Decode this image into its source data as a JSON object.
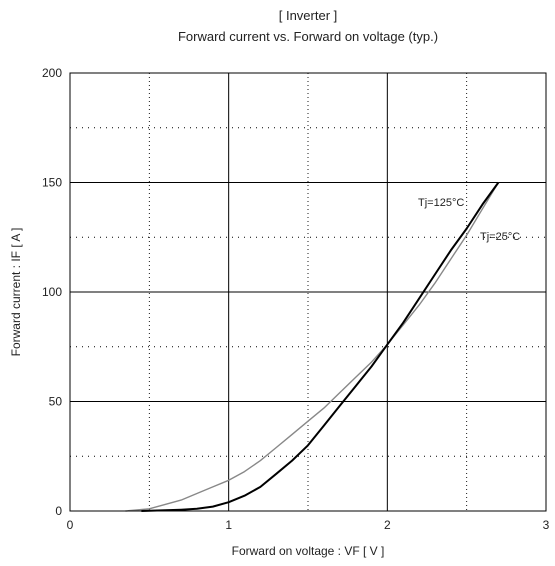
{
  "chart_data": {
    "type": "line",
    "title": "[ Inverter ]",
    "subtitle": "Forward current  vs.  Forward on voltage  (typ.)",
    "xlabel": "Forward on voltage  :  VF  [ V ]",
    "ylabel": "Forward current  :  IF  [ A ]",
    "xlim": [
      0,
      3
    ],
    "ylim": [
      0,
      200
    ],
    "xticks": [
      "0",
      "1",
      "2",
      "3"
    ],
    "yticks": [
      "0",
      "50",
      "100",
      "150",
      "200"
    ],
    "grid": true,
    "series": [
      {
        "name": "Tj=125°C",
        "color": "#888888",
        "x": [
          0.35,
          0.5,
          0.6,
          0.7,
          0.8,
          0.9,
          1.0,
          1.1,
          1.2,
          1.3,
          1.4,
          1.5,
          1.6,
          1.7,
          1.8,
          1.9,
          2.0,
          2.1,
          2.2,
          2.3,
          2.4,
          2.5,
          2.6,
          2.7
        ],
        "y": [
          0,
          1,
          3,
          5,
          8,
          11,
          14,
          18,
          23,
          29,
          35,
          41,
          47,
          54,
          61,
          68,
          76,
          85,
          94,
          104,
          115,
          126,
          138,
          150
        ]
      },
      {
        "name": "Tj=25°C",
        "color": "#000000",
        "x": [
          0.45,
          0.6,
          0.7,
          0.8,
          0.9,
          1.0,
          1.1,
          1.2,
          1.3,
          1.4,
          1.5,
          1.6,
          1.7,
          1.8,
          1.9,
          2.0,
          2.1,
          2.2,
          2.3,
          2.4,
          2.5,
          2.6,
          2.7
        ],
        "y": [
          0,
          0.3,
          0.6,
          1,
          2,
          4,
          7,
          11,
          17,
          23,
          30,
          39,
          48,
          57,
          66,
          76,
          86,
          97,
          108,
          119,
          129,
          140,
          150
        ]
      }
    ]
  }
}
